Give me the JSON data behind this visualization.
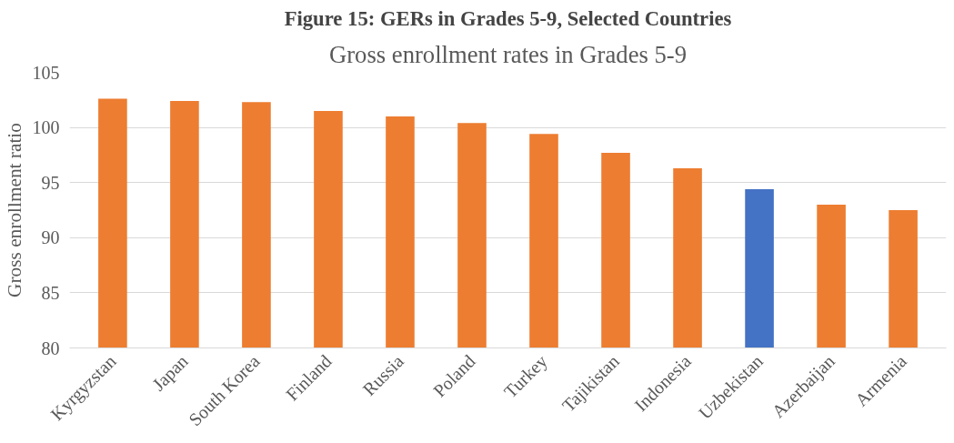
{
  "chart_data": {
    "type": "bar",
    "title": "Figure 15: GERs in Grades 5-9, Selected Countries",
    "subtitle": "Gross enrollment rates in Grades 5-9",
    "ylabel": "Gross enrollment ratio",
    "categories": [
      "Kyrgyzstan",
      "Japan",
      "South Korea",
      "Finland",
      "Russia",
      "Poland",
      "Turkey",
      "Tajikistan",
      "Indonesia",
      "Uzbekistan",
      "Azerbaijan",
      "Armenia"
    ],
    "values": [
      102.6,
      102.4,
      102.3,
      101.5,
      101.0,
      100.4,
      99.4,
      97.7,
      96.3,
      94.4,
      93.0,
      92.5
    ],
    "colors": [
      "#ed7d31",
      "#ed7d31",
      "#ed7d31",
      "#ed7d31",
      "#ed7d31",
      "#ed7d31",
      "#ed7d31",
      "#ed7d31",
      "#ed7d31",
      "#4472c4",
      "#ed7d31",
      "#ed7d31"
    ],
    "ylim": [
      80,
      105
    ],
    "yticks": [
      80,
      85,
      90,
      95,
      100,
      105
    ],
    "grid": "y"
  }
}
